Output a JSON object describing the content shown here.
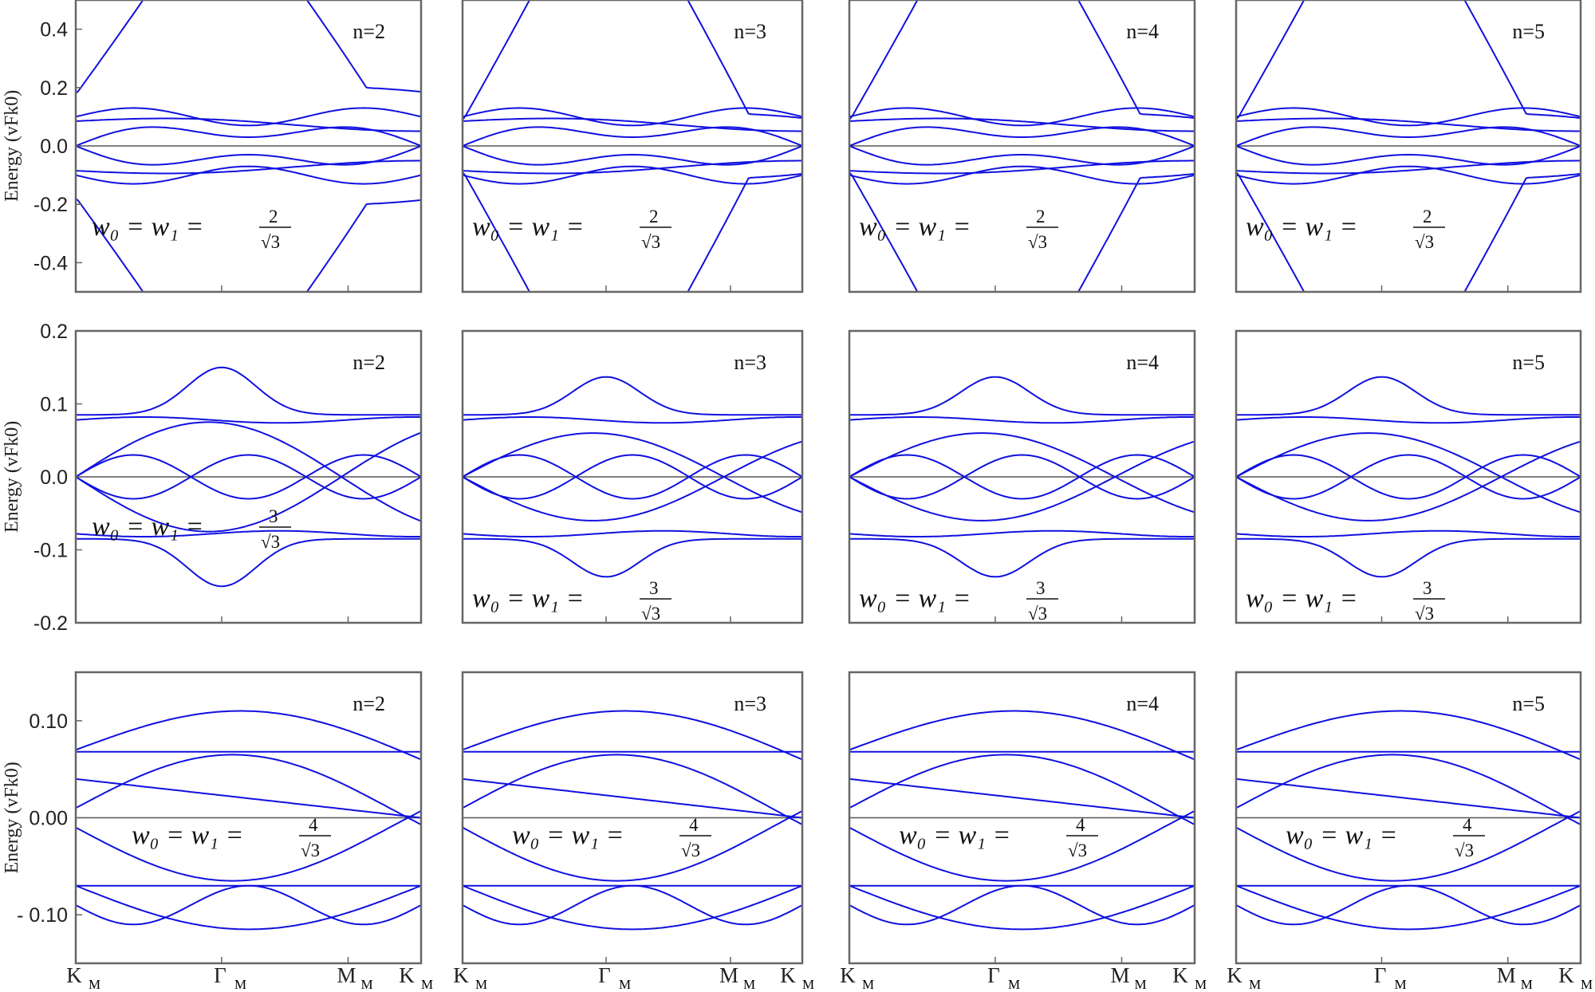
{
  "colors": {
    "band": "#1010e0",
    "axis": "#666666",
    "zero_line": "#555555"
  },
  "x_ticks": [
    "K",
    "Γ",
    "M",
    "K"
  ],
  "x_tick_sub": "M",
  "ylabel": "Energy (v",
  "ylabel_rest": "k",
  "row_labels": [
    {
      "frac": "2",
      "text": "w₀ = w₁ ="
    },
    {
      "frac": "3",
      "text": "w₀ = w₁ ="
    },
    {
      "frac": "4",
      "text": "w₀ = w₁ ="
    }
  ],
  "chart_data": [
    {
      "type": "line",
      "row": 0,
      "col": 0,
      "annotation": "n=2",
      "ylim": [
        -0.5,
        0.5
      ],
      "yticks": [
        "0.4",
        "0.2",
        "0.0",
        "-0.2",
        "-0.4"
      ],
      "ytick_values": [
        0.4,
        0.2,
        0.0,
        -0.2,
        -0.4
      ]
    },
    {
      "type": "line",
      "row": 0,
      "col": 1,
      "annotation": "n=3",
      "ylim": [
        -0.5,
        0.5
      ]
    },
    {
      "type": "line",
      "row": 0,
      "col": 2,
      "annotation": "n=4",
      "ylim": [
        -0.5,
        0.5
      ]
    },
    {
      "type": "line",
      "row": 0,
      "col": 3,
      "annotation": "n=5",
      "ylim": [
        -0.5,
        0.5
      ]
    },
    {
      "type": "line",
      "row": 1,
      "col": 0,
      "annotation": "n=2",
      "ylim": [
        -0.2,
        0.2
      ],
      "yticks": [
        "0.2",
        "0.1",
        "0.0",
        "-0.1",
        "-0.2"
      ],
      "ytick_values": [
        0.2,
        0.1,
        0.0,
        -0.1,
        -0.2
      ]
    },
    {
      "type": "line",
      "row": 1,
      "col": 1,
      "annotation": "n=3",
      "ylim": [
        -0.2,
        0.2
      ]
    },
    {
      "type": "line",
      "row": 1,
      "col": 2,
      "annotation": "n=4",
      "ylim": [
        -0.2,
        0.2
      ]
    },
    {
      "type": "line",
      "row": 1,
      "col": 3,
      "annotation": "n=5",
      "ylim": [
        -0.2,
        0.2
      ]
    },
    {
      "type": "line",
      "row": 2,
      "col": 0,
      "annotation": "n=2",
      "ylim": [
        -0.15,
        0.15
      ],
      "yticks": [
        "0.10",
        "0.00",
        "- 0.10"
      ],
      "ytick_values": [
        0.1,
        0.0,
        -0.1
      ]
    },
    {
      "type": "line",
      "row": 2,
      "col": 1,
      "annotation": "n=3",
      "ylim": [
        -0.15,
        0.15
      ]
    },
    {
      "type": "line",
      "row": 2,
      "col": 2,
      "annotation": "n=4",
      "ylim": [
        -0.15,
        0.15
      ]
    },
    {
      "type": "line",
      "row": 2,
      "col": 3,
      "annotation": "n=5",
      "ylim": [
        -0.15,
        0.15
      ]
    }
  ]
}
